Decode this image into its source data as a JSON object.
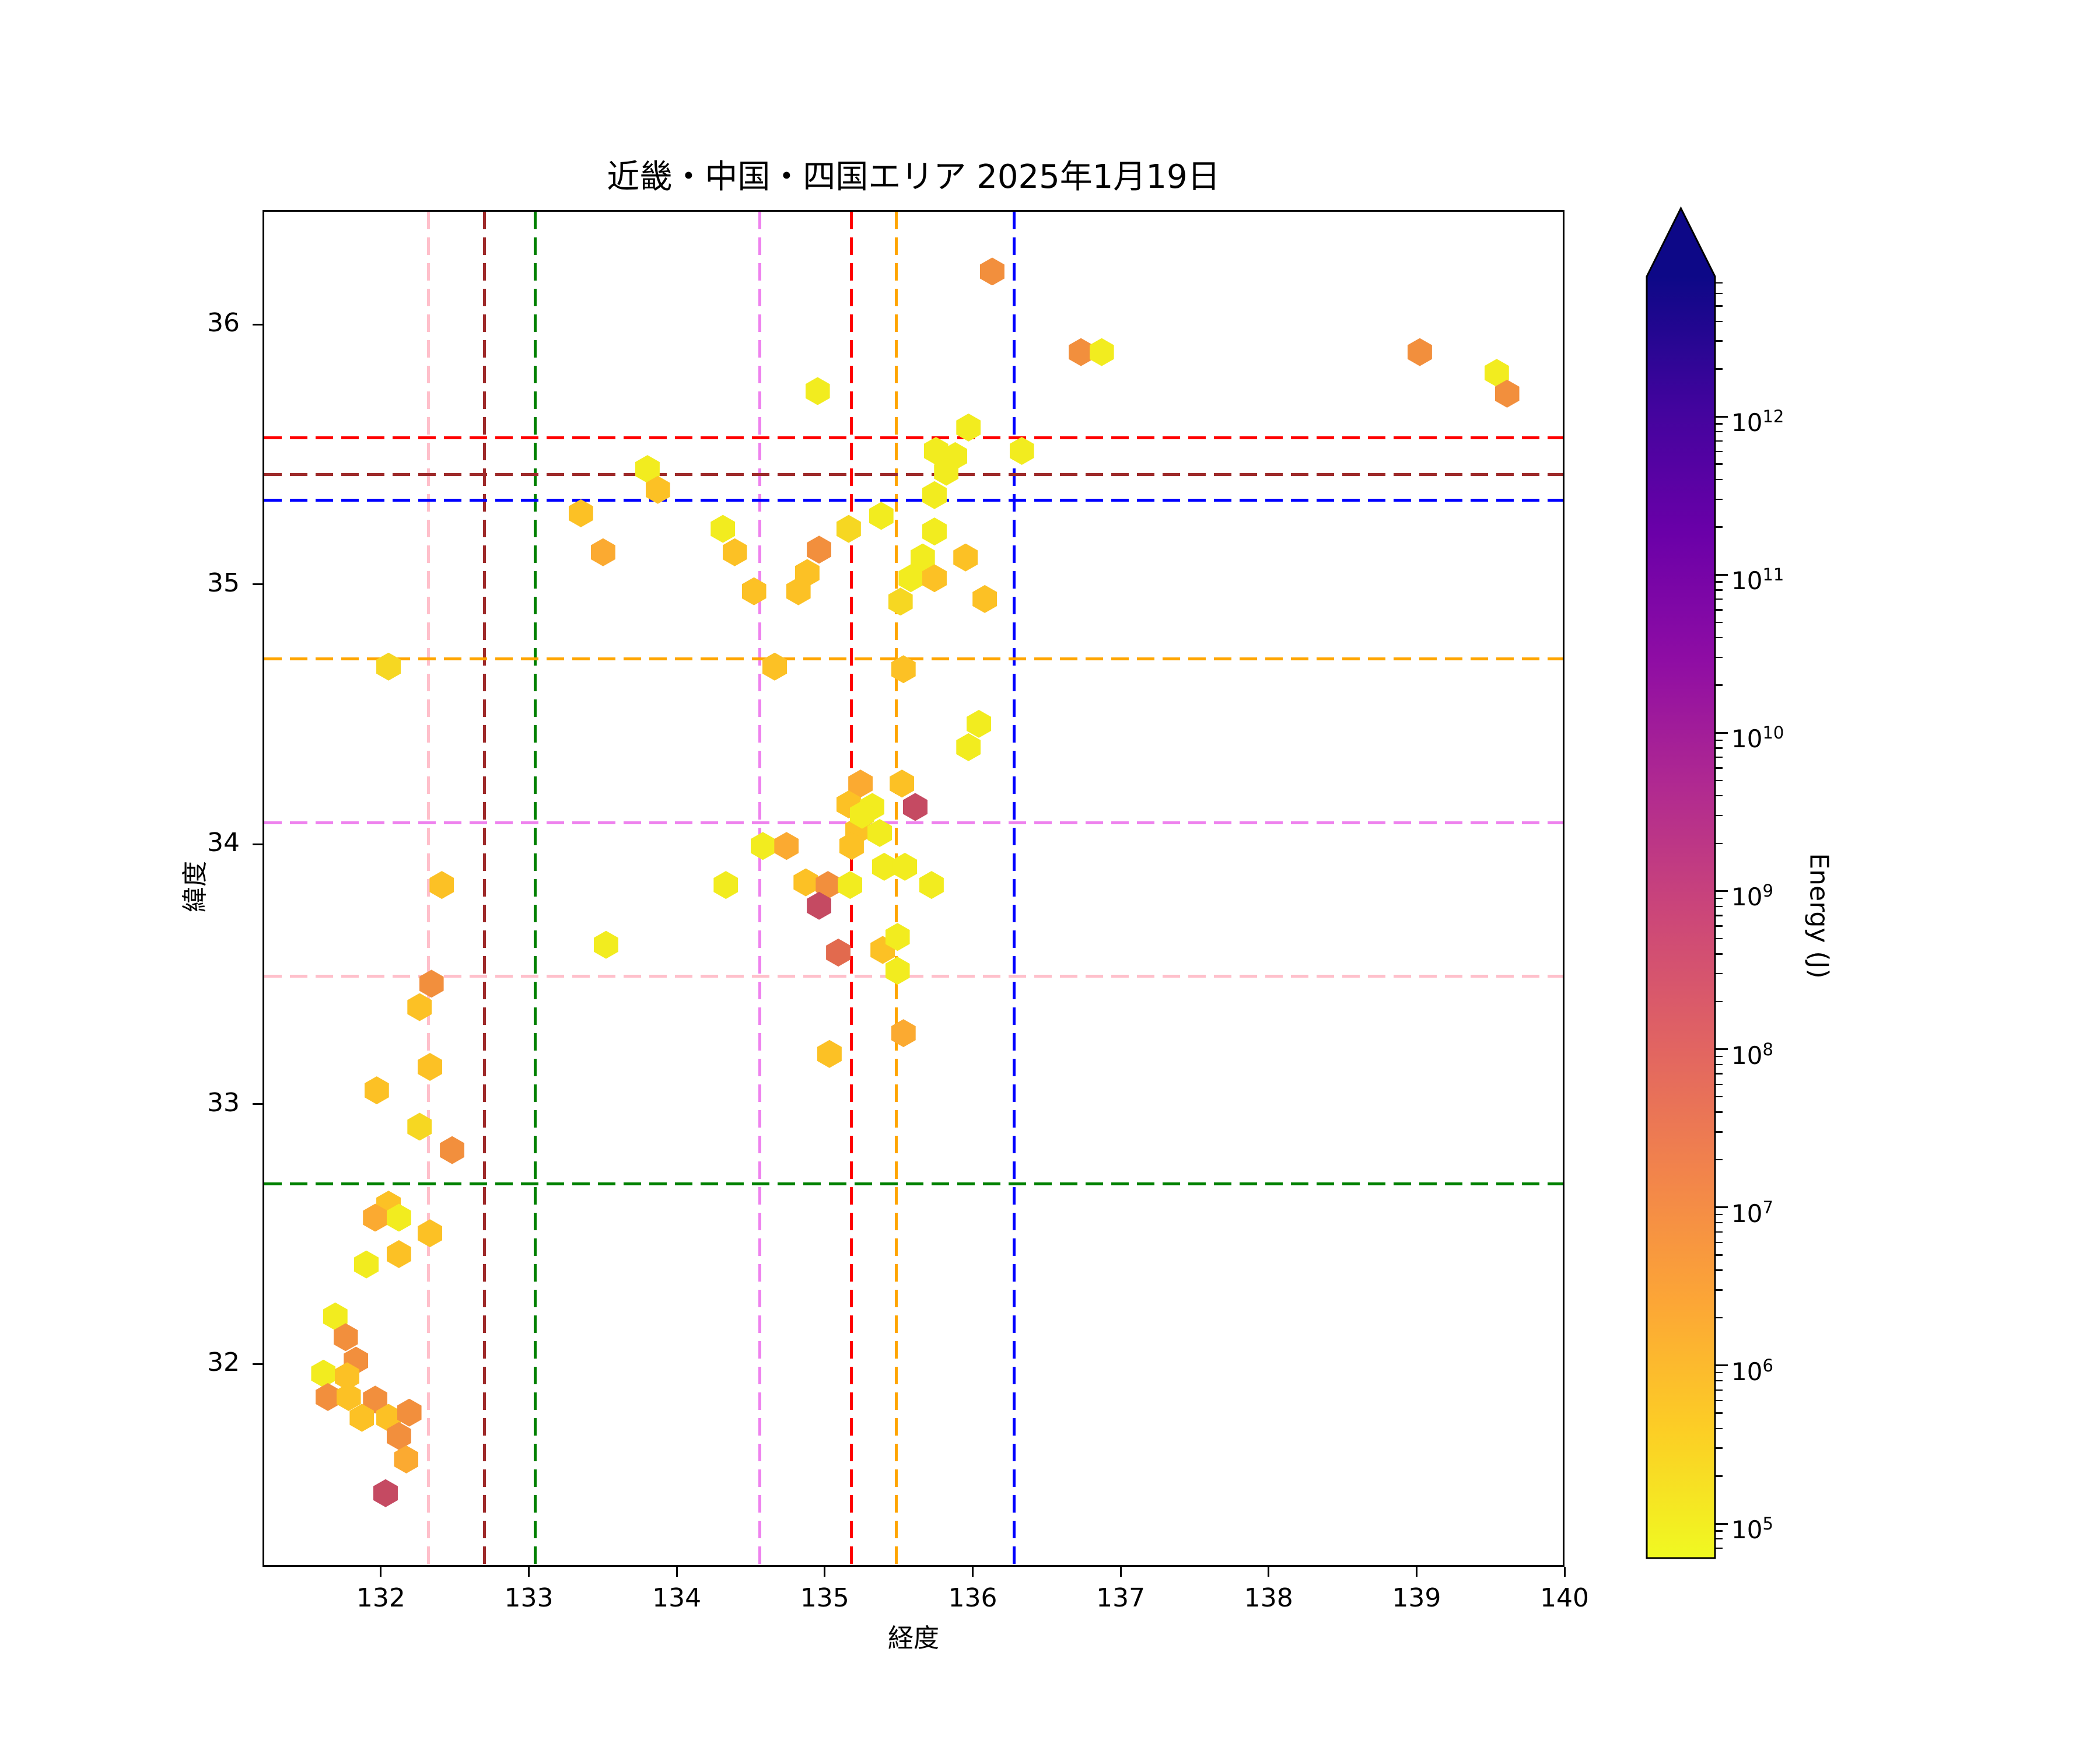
{
  "title": "近畿・中国・四国エリア 2025年1月19日",
  "axes": {
    "xlabel": "経度",
    "ylabel": "緯度",
    "x_ticks": [
      132,
      133,
      134,
      135,
      136,
      137,
      138,
      139,
      140
    ],
    "y_ticks": [
      32,
      33,
      34,
      35,
      36
    ]
  },
  "colorbar": {
    "label": "Energy (J)",
    "base": "10",
    "tick_exponents": [
      12,
      11,
      10,
      9,
      8,
      7,
      6,
      5
    ],
    "colormap": "plasma-reversed-vertical",
    "extend": "max-arrow-top"
  },
  "chart_data": {
    "type": "scatter",
    "subtype": "hexbin",
    "title": "近畿・中国・四国エリア 2025年1月19日",
    "xlabel": "経度",
    "ylabel": "緯度",
    "xlim": [
      131.2,
      140.0
    ],
    "ylim": [
      31.22,
      36.44
    ],
    "grid": false,
    "color_scale": {
      "label": "Energy (J)",
      "scale": "log",
      "tick_values": [
        "1e12",
        "1e11",
        "1e10",
        "1e9",
        "1e8",
        "1e7",
        "1e6",
        "1e5"
      ],
      "palette": {
        "yellow": {
          "hex": "#f2ec1f",
          "energy": "~1e5"
        },
        "yellow2": {
          "hex": "#f6d722",
          "energy": "~4e5"
        },
        "gold": {
          "hex": "#fcc125",
          "energy": "~1.5e6"
        },
        "goldorange": {
          "hex": "#fbaa31",
          "energy": "~5e6"
        },
        "orange": {
          "hex": "#f28f3d",
          "energy": "~2e7"
        },
        "orangered": {
          "hex": "#e26a4e",
          "energy": "~2e8"
        },
        "crimson": {
          "hex": "#c54a62",
          "energy": "~1.5e9"
        }
      }
    },
    "points": [
      [
        131.89,
        32.39,
        "yellow"
      ],
      [
        131.68,
        32.19,
        "yellow"
      ],
      [
        131.75,
        32.11,
        "orange"
      ],
      [
        131.82,
        32.02,
        "orange"
      ],
      [
        131.6,
        31.97,
        "yellow"
      ],
      [
        131.76,
        31.96,
        "gold"
      ],
      [
        131.63,
        31.88,
        "orange"
      ],
      [
        131.77,
        31.88,
        "gold"
      ],
      [
        131.95,
        31.87,
        "orange"
      ],
      [
        131.86,
        31.8,
        "gold"
      ],
      [
        132.04,
        31.8,
        "gold"
      ],
      [
        132.18,
        31.82,
        "orange"
      ],
      [
        132.11,
        31.73,
        "orange"
      ],
      [
        132.16,
        31.64,
        "goldorange"
      ],
      [
        132.02,
        31.51,
        "crimson"
      ],
      [
        132.33,
        33.47,
        "orange"
      ],
      [
        132.25,
        33.38,
        "gold"
      ],
      [
        132.4,
        33.85,
        "gold"
      ],
      [
        132.32,
        33.15,
        "gold"
      ],
      [
        131.96,
        33.06,
        "gold"
      ],
      [
        132.25,
        32.92,
        "yellow2"
      ],
      [
        132.47,
        32.83,
        "orange"
      ],
      [
        132.04,
        32.62,
        "gold"
      ],
      [
        131.95,
        32.57,
        "goldorange"
      ],
      [
        132.11,
        32.57,
        "yellow"
      ],
      [
        132.32,
        32.51,
        "gold"
      ],
      [
        132.11,
        32.43,
        "gold"
      ],
      [
        133.51,
        33.62,
        "yellow"
      ],
      [
        132.04,
        34.69,
        "yellow2"
      ],
      [
        133.79,
        35.45,
        "yellow"
      ],
      [
        133.86,
        35.37,
        "gold"
      ],
      [
        133.34,
        35.28,
        "gold"
      ],
      [
        133.49,
        35.13,
        "goldorange"
      ],
      [
        134.3,
        35.22,
        "yellow"
      ],
      [
        134.38,
        35.13,
        "gold"
      ],
      [
        134.51,
        34.98,
        "gold"
      ],
      [
        134.95,
        35.14,
        "orange"
      ],
      [
        134.87,
        35.05,
        "gold"
      ],
      [
        134.81,
        34.98,
        "gold"
      ],
      [
        135.15,
        35.22,
        "yellow2"
      ],
      [
        135.37,
        35.27,
        "yellow"
      ],
      [
        134.94,
        35.75,
        "yellow"
      ],
      [
        135.96,
        35.61,
        "yellow"
      ],
      [
        135.74,
        35.52,
        "yellow"
      ],
      [
        135.87,
        35.5,
        "yellow"
      ],
      [
        135.81,
        35.44,
        "yellow"
      ],
      [
        136.32,
        35.52,
        "yellow"
      ],
      [
        135.73,
        35.35,
        "yellow"
      ],
      [
        135.73,
        35.21,
        "yellow"
      ],
      [
        135.65,
        35.11,
        "yellow"
      ],
      [
        135.57,
        35.03,
        "yellow"
      ],
      [
        135.94,
        35.11,
        "gold"
      ],
      [
        135.73,
        35.03,
        "gold"
      ],
      [
        135.5,
        34.94,
        "yellow2"
      ],
      [
        136.07,
        34.95,
        "gold"
      ],
      [
        136.12,
        36.21,
        "orange"
      ],
      [
        136.72,
        35.9,
        "orange"
      ],
      [
        136.86,
        35.9,
        "yellow"
      ],
      [
        139.01,
        35.9,
        "orange"
      ],
      [
        139.53,
        35.82,
        "yellow"
      ],
      [
        139.6,
        35.74,
        "orange"
      ],
      [
        135.52,
        34.68,
        "gold"
      ],
      [
        134.65,
        34.69,
        "gold"
      ],
      [
        136.03,
        34.47,
        "yellow"
      ],
      [
        135.96,
        34.38,
        "yellow"
      ],
      [
        135.23,
        34.24,
        "goldorange"
      ],
      [
        135.51,
        34.24,
        "gold"
      ],
      [
        135.6,
        34.15,
        "crimson"
      ],
      [
        135.15,
        34.16,
        "gold"
      ],
      [
        135.31,
        34.15,
        "yellow"
      ],
      [
        135.21,
        34.06,
        "gold"
      ],
      [
        135.36,
        34.05,
        "yellow"
      ],
      [
        135.24,
        34.12,
        "yellow"
      ],
      [
        135.17,
        34.0,
        "gold"
      ],
      [
        134.57,
        34.0,
        "yellow"
      ],
      [
        134.73,
        34.0,
        "goldorange"
      ],
      [
        134.32,
        33.85,
        "yellow"
      ],
      [
        134.86,
        33.86,
        "gold"
      ],
      [
        135.01,
        33.85,
        "orange"
      ],
      [
        135.16,
        33.85,
        "yellow"
      ],
      [
        134.95,
        33.77,
        "crimson"
      ],
      [
        135.71,
        33.85,
        "yellow"
      ],
      [
        135.39,
        33.92,
        "yellow"
      ],
      [
        135.53,
        33.92,
        "yellow"
      ],
      [
        135.08,
        33.59,
        "orangered"
      ],
      [
        135.38,
        33.6,
        "gold"
      ],
      [
        135.48,
        33.65,
        "yellow"
      ],
      [
        135.48,
        33.52,
        "yellow"
      ],
      [
        135.52,
        33.28,
        "goldorange"
      ],
      [
        135.02,
        33.2,
        "gold"
      ]
    ],
    "reference_lines": {
      "vertical": [
        {
          "color_name": "pink",
          "hex": "#ffc0cb",
          "lon": 132.31
        },
        {
          "color_name": "darkred",
          "hex": "#9e2b2b",
          "lon": 132.69
        },
        {
          "color_name": "green",
          "hex": "#008000",
          "lon": 133.03
        },
        {
          "color_name": "violet",
          "hex": "#ee82ee",
          "lon": 134.55
        },
        {
          "color_name": "red",
          "hex": "#ff0000",
          "lon": 135.17
        },
        {
          "color_name": "orange",
          "hex": "#ffa500",
          "lon": 135.47
        },
        {
          "color_name": "blue",
          "hex": "#0000ff",
          "lon": 136.27
        }
      ],
      "horizontal": [
        {
          "color_name": "red",
          "hex": "#ff0000",
          "lat": 35.57
        },
        {
          "color_name": "darkred",
          "hex": "#9e2b2b",
          "lat": 35.43
        },
        {
          "color_name": "blue",
          "hex": "#0000ff",
          "lat": 35.33
        },
        {
          "color_name": "orange",
          "hex": "#ffa500",
          "lat": 34.72
        },
        {
          "color_name": "violet",
          "hex": "#ee82ee",
          "lat": 34.09
        },
        {
          "color_name": "pink",
          "hex": "#ffc0cb",
          "lat": 33.5
        },
        {
          "color_name": "green",
          "hex": "#008000",
          "lat": 32.7
        }
      ]
    },
    "legend": "none"
  }
}
